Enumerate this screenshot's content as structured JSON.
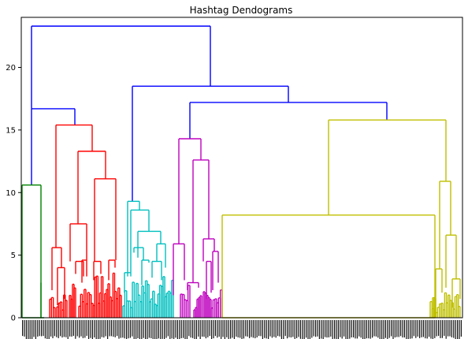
{
  "chart_data": {
    "type": "dendrogram",
    "title": "Hashtag Dendograms",
    "xlabel": "",
    "ylabel": "",
    "ylim": [
      0,
      24
    ],
    "y_ticks": [
      0,
      5,
      10,
      15,
      20
    ],
    "grid": false,
    "legend": "none",
    "colors": {
      "above_threshold": "#0000ff",
      "green": "#008000",
      "red": "#ff0000",
      "cyan": "#00bfbf",
      "magenta": "#bf00bf",
      "olive": "#bfbf00",
      "axis": "#000000"
    },
    "merges": [
      {
        "color": "blue",
        "height": 23.3,
        "children": [
          "A",
          "B"
        ]
      },
      {
        "color": "blue",
        "height": 16.7,
        "children": [
          "green_cluster",
          "red_cluster"
        ]
      },
      {
        "color": "blue",
        "height": 18.5,
        "children": [
          "cyan_cluster",
          "C"
        ]
      },
      {
        "color": "blue",
        "height": 17.2,
        "children": [
          "magenta_cluster",
          "olive_cluster"
        ]
      },
      {
        "color": "green",
        "height": 10.6,
        "size": "small"
      },
      {
        "color": "red",
        "height": 15.4
      },
      {
        "color": "red",
        "height": 13.3
      },
      {
        "color": "red",
        "height": 11.1
      },
      {
        "color": "red",
        "height": 7.5
      },
      {
        "color": "red",
        "height": 5.6
      },
      {
        "color": "red",
        "height": 4.0
      },
      {
        "color": "cyan",
        "height": 9.3
      },
      {
        "color": "cyan",
        "height": 8.6
      },
      {
        "color": "cyan",
        "height": 6.9
      },
      {
        "color": "cyan",
        "height": 5.9
      },
      {
        "color": "magenta",
        "height": 14.3
      },
      {
        "color": "magenta",
        "height": 12.6
      },
      {
        "color": "magenta",
        "height": 6.3
      },
      {
        "color": "magenta",
        "height": 5.9
      },
      {
        "color": "olive",
        "height": 15.8
      },
      {
        "color": "olive",
        "height": 8.2
      },
      {
        "color": "olive",
        "height": 10.9
      },
      {
        "color": "olive",
        "height": 6.6
      },
      {
        "color": "olive",
        "height": 3.9
      }
    ]
  }
}
